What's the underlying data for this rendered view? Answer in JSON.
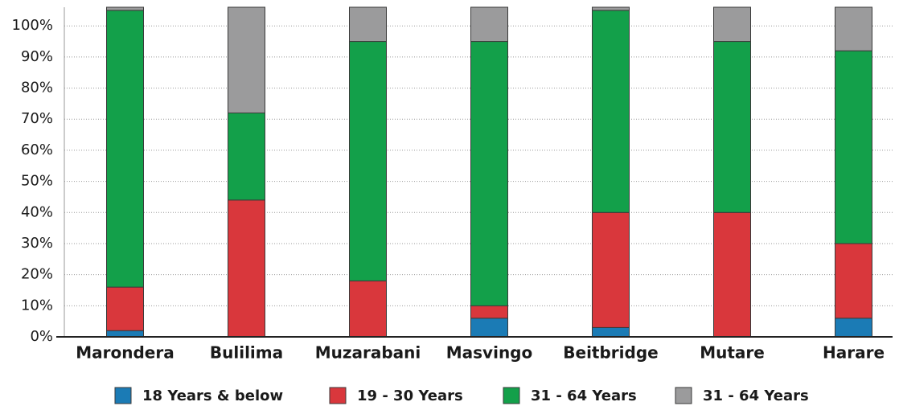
{
  "chart_data": {
    "type": "stacked-bar",
    "categories": [
      "Marondera",
      "Bulilima",
      "Muzarabani",
      "Masvingo",
      "Beitbridge",
      "Mutare",
      "Harare"
    ],
    "series": [
      {
        "name": "18 Years & below",
        "color": "#1b7bb5",
        "values": [
          2,
          0,
          0,
          6,
          3,
          0,
          6
        ]
      },
      {
        "name": "19 - 30 Years",
        "color": "#d9373c",
        "values": [
          14,
          44,
          18,
          4,
          37,
          40,
          24
        ]
      },
      {
        "name": "31 - 64 Years",
        "color": "#13a04a",
        "values": [
          89,
          28,
          77,
          85,
          65,
          55,
          62
        ]
      },
      {
        "name": "31 - 64 Years",
        "color": "#9b9b9c",
        "values": [
          1,
          34,
          11,
          11,
          1,
          11,
          14
        ]
      }
    ],
    "ylim": [
      0,
      106
    ],
    "yticks": [
      {
        "value": 0,
        "label": "0%"
      },
      {
        "value": 10,
        "label": "10%"
      },
      {
        "value": 20,
        "label": "20%"
      },
      {
        "value": 30,
        "label": "30%"
      },
      {
        "value": 40,
        "label": "40%"
      },
      {
        "value": 50,
        "label": "50%"
      },
      {
        "value": 60,
        "label": "60%"
      },
      {
        "value": 70,
        "label": "70%"
      },
      {
        "value": 80,
        "label": "80%"
      },
      {
        "value": 90,
        "label": "90%"
      },
      {
        "value": 100,
        "label": "100%"
      }
    ],
    "grid": true
  }
}
